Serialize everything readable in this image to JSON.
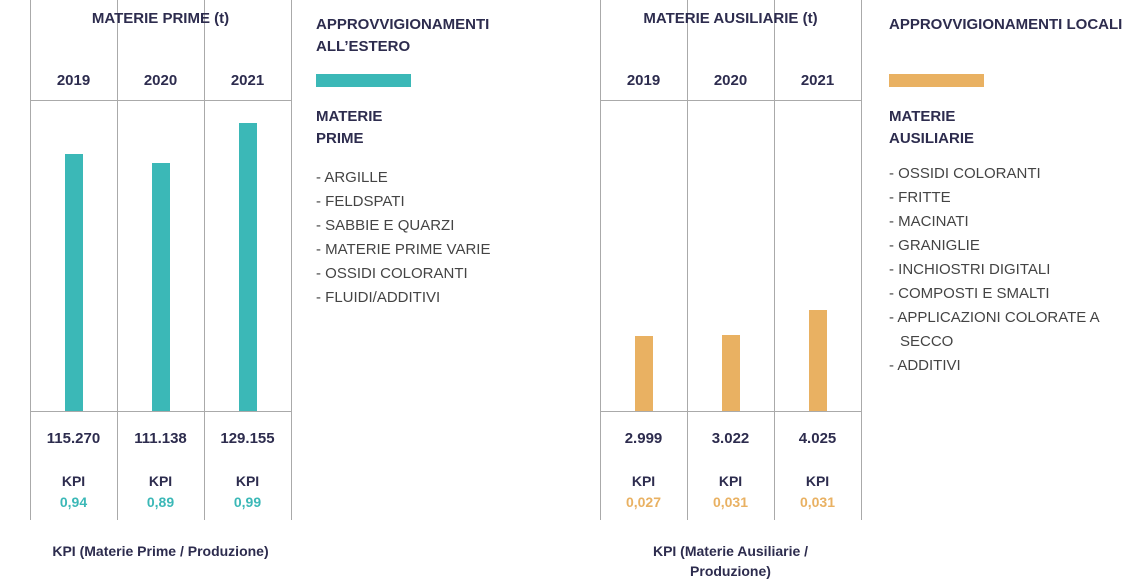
{
  "chart_data": [
    {
      "type": "bar",
      "title": "MATERIE PRIME (t)",
      "categories": [
        "2019",
        "2020",
        "2021"
      ],
      "values": [
        115270,
        111138,
        129155
      ],
      "value_labels": [
        "115.270",
        "111.138",
        "129.155"
      ],
      "color": "#3bb8b7",
      "ylim": [
        0,
        135000
      ],
      "kpi_label": "KPI",
      "kpi_values": [
        0.94,
        0.89,
        0.99
      ],
      "kpi_value_labels": [
        "0,94",
        "0,89",
        "0,99"
      ],
      "footnote": "KPI (Materie Prime / Produzione)",
      "heading": "APPROVVIGIONAMENTI ALL’ESTERO",
      "legend": "MATERIE PRIME",
      "items": [
        "- ARGILLE",
        "- FELDSPATI",
        "- SABBIE E QUARZI",
        "- MATERIE PRIME VARIE",
        "- OSSIDI COLORANTI",
        "- FLUIDI/ADDITIVI"
      ]
    },
    {
      "type": "bar",
      "title": "MATERIE AUSILIARIE (t)",
      "categories": [
        "2019",
        "2020",
        "2021"
      ],
      "values": [
        2999,
        3022,
        4025
      ],
      "value_labels": [
        "2.999",
        "3.022",
        "4.025"
      ],
      "color": "#e9b162",
      "ylim": [
        0,
        12000
      ],
      "kpi_label": "KPI",
      "kpi_values": [
        0.027,
        0.031,
        0.031
      ],
      "kpi_value_labels": [
        "0,027",
        "0,031",
        "0,031"
      ],
      "footnote": "KPI (Materie Ausiliarie / Produzione)",
      "heading": "APPROVVIGIONAMENTI LOCALI",
      "legend": "MATERIE AUSILIARIE",
      "items": [
        "- OSSIDI COLORANTI",
        "- FRITTE",
        "- MACINATI",
        "- GRANIGLIE",
        "- INCHIOSTRI DIGITALI",
        "- COMPOSTI E SMALTI",
        "- APPLICAZIONI COLORATE A SECCO",
        "- ADDITIVI"
      ]
    }
  ]
}
